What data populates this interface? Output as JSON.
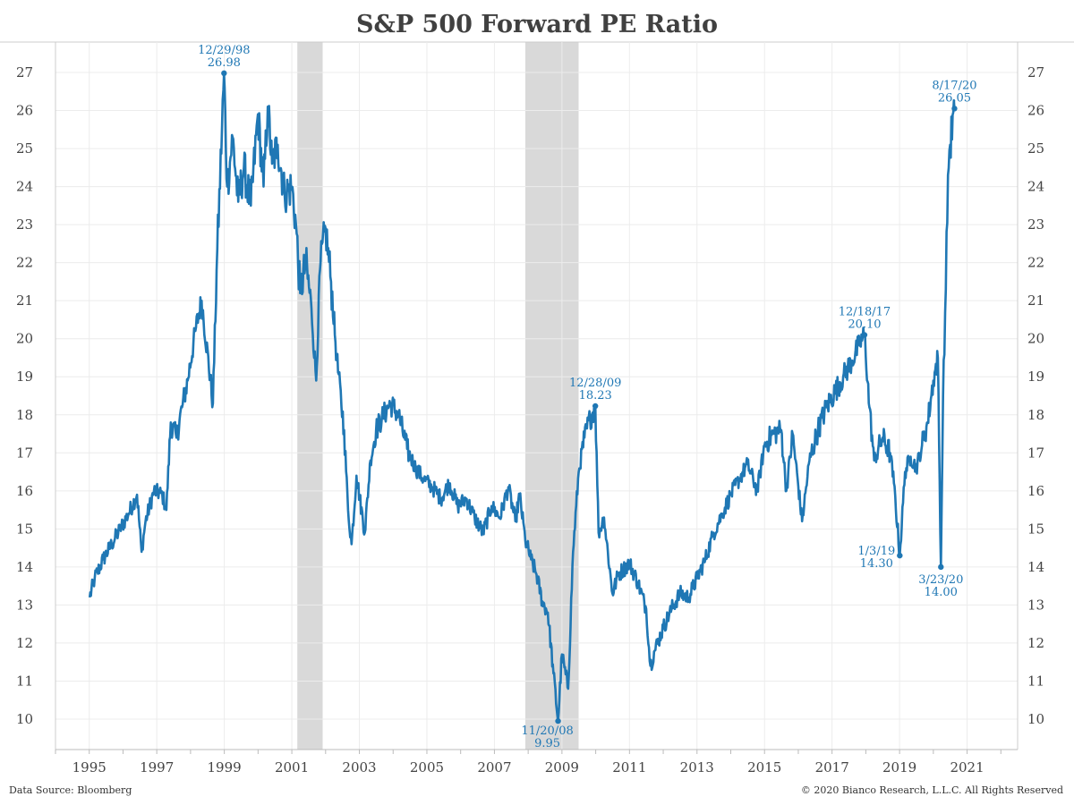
{
  "chart_data": {
    "type": "line",
    "title": "S&P 500 Forward PE Ratio",
    "xlabel": "",
    "ylabel": "",
    "ylim": [
      9.2,
      27.8
    ],
    "xlim": [
      "1994-01-01",
      "2022-07-01"
    ],
    "y_ticks": [
      10,
      11,
      12,
      13,
      14,
      15,
      16,
      17,
      18,
      19,
      20,
      21,
      22,
      23,
      24,
      25,
      26,
      27
    ],
    "x_ticks": [
      "1995",
      "1997",
      "1999",
      "2001",
      "2003",
      "2005",
      "2007",
      "2009",
      "2011",
      "2013",
      "2015",
      "2017",
      "2019",
      "2021"
    ],
    "grid": true,
    "line_color": "#1f77b4",
    "recession_color": "#d9d9d9",
    "recessions": [
      {
        "start": "2001-03-01",
        "end": "2001-11-30"
      },
      {
        "start": "2007-12-01",
        "end": "2009-06-30"
      }
    ],
    "series": [
      {
        "x": [
          "1995-01-06",
          "1995-03-01",
          "1995-06-01",
          "1995-09-01",
          "1995-12-01",
          "1996-03-01",
          "1996-06-01",
          "1996-07-20",
          "1996-09-01",
          "1996-12-01",
          "1997-03-01",
          "1997-04-15",
          "1997-06-01",
          "1997-08-01",
          "1997-10-01",
          "1997-12-01",
          "1998-03-01",
          "1998-05-01",
          "1998-08-31",
          "1998-10-10",
          "1998-12-29",
          "1999-02-01",
          "1999-04-01",
          "1999-06-01",
          "1999-08-01",
          "1999-10-15",
          "1999-12-31",
          "2000-03-01",
          "2000-04-15",
          "2000-06-01",
          "2000-08-01",
          "2000-10-15",
          "2001-01-01",
          "2001-02-15",
          "2001-04-01",
          "2001-06-01",
          "2001-08-01",
          "2001-09-21",
          "2001-11-01",
          "2002-01-01",
          "2002-03-01",
          "2002-05-01",
          "2002-07-20",
          "2002-09-01",
          "2002-10-09",
          "2002-12-01",
          "2003-03-01",
          "2003-05-01",
          "2003-07-01",
          "2003-09-01",
          "2003-12-01",
          "2004-03-01",
          "2004-06-01",
          "2004-09-01",
          "2004-12-01",
          "2005-03-01",
          "2005-06-01",
          "2005-09-01",
          "2005-12-01",
          "2006-03-01",
          "2006-06-01",
          "2006-09-01",
          "2006-12-01",
          "2007-03-01",
          "2007-06-01",
          "2007-08-15",
          "2007-10-01",
          "2007-12-01",
          "2008-02-01",
          "2008-04-01",
          "2008-06-01",
          "2008-08-01",
          "2008-10-01",
          "2008-11-20",
          "2009-01-01",
          "2009-03-09",
          "2009-05-01",
          "2009-07-01",
          "2009-09-01",
          "2009-11-01",
          "2009-12-28",
          "2010-02-01",
          "2010-04-01",
          "2010-07-01",
          "2010-09-01",
          "2011-01-01",
          "2011-04-01",
          "2011-07-01",
          "2011-08-15",
          "2011-10-01",
          "2012-01-01",
          "2012-04-01",
          "2012-07-01",
          "2012-10-01",
          "2013-01-01",
          "2013-04-01",
          "2013-07-01",
          "2013-10-01",
          "2014-01-01",
          "2014-04-01",
          "2014-07-01",
          "2014-10-15",
          "2015-01-01",
          "2015-04-01",
          "2015-07-01",
          "2015-08-25",
          "2015-11-01",
          "2016-02-11",
          "2016-05-01",
          "2016-08-01",
          "2016-11-01",
          "2017-02-01",
          "2017-05-01",
          "2017-08-01",
          "2017-11-01",
          "2017-12-18",
          "2018-02-09",
          "2018-04-01",
          "2018-07-01",
          "2018-09-20",
          "2018-11-01",
          "2019-01-03",
          "2019-03-01",
          "2019-05-01",
          "2019-07-01",
          "2019-09-01",
          "2019-11-01",
          "2020-01-01",
          "2020-02-19",
          "2020-03-23",
          "2020-04-15",
          "2020-05-15",
          "2020-06-08",
          "2020-07-01",
          "2020-08-17"
        ],
        "values": [
          13.2,
          13.7,
          14.2,
          14.6,
          15.0,
          15.4,
          15.9,
          14.4,
          15.2,
          16.0,
          15.9,
          15.5,
          17.8,
          17.4,
          18.2,
          18.9,
          20.3,
          21.0,
          18.3,
          21.8,
          26.98,
          24.0,
          25.3,
          23.6,
          24.5,
          23.5,
          25.9,
          24.0,
          26.1,
          24.6,
          25.1,
          23.8,
          24.0,
          23.0,
          21.2,
          22.0,
          20.8,
          18.9,
          21.8,
          22.9,
          21.5,
          19.5,
          17.6,
          15.5,
          14.6,
          16.4,
          14.9,
          16.8,
          17.6,
          17.9,
          18.3,
          18.0,
          17.1,
          16.6,
          16.3,
          16.1,
          15.8,
          16.2,
          15.6,
          15.8,
          15.3,
          14.9,
          15.6,
          15.3,
          16.1,
          15.2,
          15.9,
          14.7,
          14.2,
          13.8,
          13.1,
          12.8,
          11.2,
          9.95,
          11.7,
          10.8,
          14.4,
          16.5,
          17.4,
          17.9,
          18.23,
          14.9,
          15.3,
          13.3,
          13.8,
          14.1,
          13.6,
          12.9,
          11.4,
          11.8,
          12.4,
          12.9,
          13.3,
          13.2,
          13.7,
          14.2,
          14.9,
          15.4,
          15.9,
          16.3,
          16.7,
          16.0,
          17.2,
          17.5,
          17.6,
          16.0,
          17.5,
          15.2,
          16.8,
          17.6,
          18.2,
          18.6,
          19.0,
          19.4,
          19.9,
          20.1,
          18.2,
          16.8,
          17.4,
          17.0,
          16.2,
          14.3,
          16.5,
          16.9,
          16.6,
          17.2,
          17.8,
          18.9,
          19.5,
          14.0,
          18.5,
          21.3,
          24.3,
          25.1,
          26.05
        ]
      }
    ],
    "annotations": [
      {
        "date_label": "12/29/98",
        "value_label": "26.98",
        "x": "1998-12-29",
        "y": 26.98,
        "position": "above"
      },
      {
        "date_label": "11/20/08",
        "value_label": "9.95",
        "x": "2008-11-20",
        "y": 9.95,
        "position": "below-left"
      },
      {
        "date_label": "12/28/09",
        "value_label": "18.23",
        "x": "2009-12-28",
        "y": 18.23,
        "position": "above"
      },
      {
        "date_label": "12/18/17",
        "value_label": "20.10",
        "x": "2017-12-18",
        "y": 20.1,
        "position": "above"
      },
      {
        "date_label": "1/3/19",
        "value_label": "14.30",
        "x": "2019-01-03",
        "y": 14.3,
        "position": "left"
      },
      {
        "date_label": "3/23/20",
        "value_label": "14.00",
        "x": "2020-03-23",
        "y": 14.0,
        "position": "below"
      },
      {
        "date_label": "8/17/20",
        "value_label": "26.05",
        "x": "2020-08-17",
        "y": 26.05,
        "position": "above"
      }
    ]
  },
  "footer": {
    "source": "Data Source: Bloomberg",
    "copyright": "© 2020 Bianco Research, L.L.C. All Rights Reserved"
  }
}
